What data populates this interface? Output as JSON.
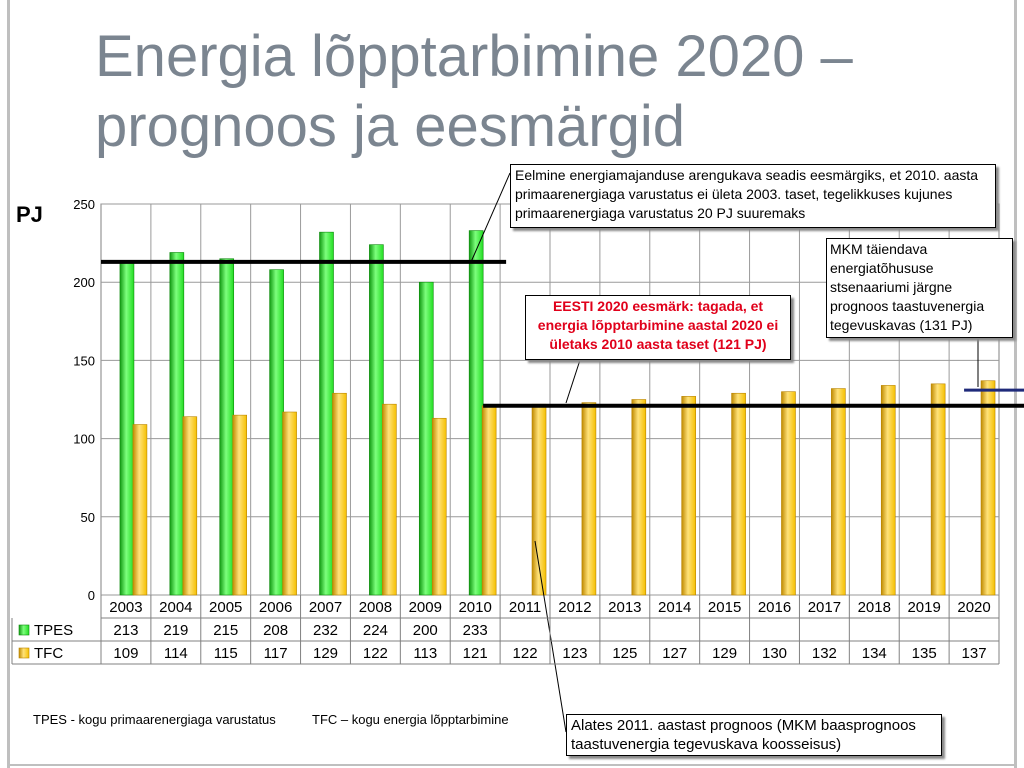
{
  "slide": {
    "title_line1": "Energia lõpptarbimine 2020 –",
    "title_line2": "prognoos ja eesmärgid",
    "y_unit": "PJ"
  },
  "callouts": {
    "previous_plan": "Eelmine energiamajanduse arengukava seadis eesmärgiks, et 2010. aasta primaarenergiaga varustatus ei ületa 2003. taset, tegelikkuses kujunes primaarenergiaga varustatus 20 PJ suuremaks",
    "mkm_scenario": "MKM täiendava energiatõhususe stsenaariumi järgne prognoos taastuvenergia tegevuskavas (131 PJ)",
    "target_2020": "EESTI 2020 eesmärk: tagada, et energia lõpptarbimine aastal 2020 ei ületaks 2010 aasta taset (121 PJ)",
    "forecast_note": "Alates 2011. aastast prognoos (MKM baasprognoos taastuvenergia tegevuskava koosseisus)"
  },
  "footnotes": {
    "tpes": "TPES - kogu primaarenergiaga varustatus",
    "tfc": "TFC – kogu energia lõpptarbimine"
  },
  "chart_data": {
    "type": "bar",
    "title": "Energia lõpptarbimine 2020 – prognoos ja eesmärgid",
    "ylabel": "PJ",
    "ylim": [
      0,
      250
    ],
    "yticks": [
      0,
      50,
      100,
      150,
      200,
      250
    ],
    "grid": true,
    "legend": "data-table",
    "categories": [
      "2003",
      "2004",
      "2005",
      "2006",
      "2007",
      "2008",
      "2009",
      "2010",
      "2011",
      "2012",
      "2013",
      "2014",
      "2015",
      "2016",
      "2017",
      "2018",
      "2019",
      "2020"
    ],
    "series": [
      {
        "name": "TPES",
        "color": "#22dd22",
        "values": [
          213,
          219,
          215,
          208,
          232,
          224,
          200,
          233,
          null,
          null,
          null,
          null,
          null,
          null,
          null,
          null,
          null,
          null
        ]
      },
      {
        "name": "TFC",
        "color": "#f5c000",
        "values": [
          109,
          114,
          115,
          117,
          129,
          122,
          113,
          121,
          122,
          123,
          125,
          127,
          129,
          130,
          132,
          134,
          135,
          137
        ]
      }
    ],
    "reference_lines": [
      {
        "label": "2003 TPES level",
        "value": 213,
        "from": "2003",
        "to": "2010",
        "color": "#000000"
      },
      {
        "label": "2010 TFC level (121 PJ)",
        "value": 121,
        "from": "2010",
        "to": "2020",
        "color": "#000000"
      },
      {
        "label": "MKM scenario (131 PJ)",
        "value": 131,
        "from": "2020",
        "to": "2020",
        "color": "#1f2a7a"
      }
    ]
  }
}
